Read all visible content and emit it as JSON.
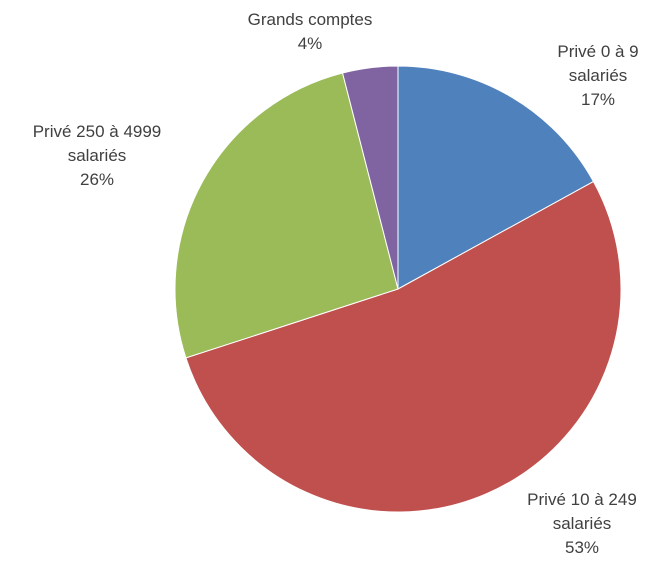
{
  "chart_data": {
    "type": "pie",
    "categories": [
      "Privé 0 à 9 salariés",
      "Privé 10 à 249 salariés",
      "Privé 250 à 4999 salariés",
      "Grands comptes"
    ],
    "values": [
      17,
      53,
      26,
      4
    ],
    "value_labels": [
      "17%",
      "53%",
      "26%",
      "4%"
    ],
    "colors": [
      "#4f81bd",
      "#c0504d",
      "#9bbb59",
      "#8064a2"
    ]
  }
}
